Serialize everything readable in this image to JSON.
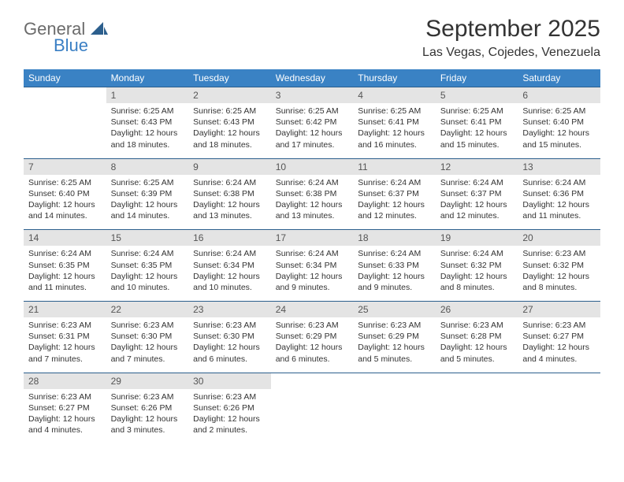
{
  "brand": {
    "word1": "General",
    "word2": "Blue",
    "color_general": "#6b6b6b",
    "color_blue": "#3a7fc4",
    "shape_color": "#2c5f8d"
  },
  "title": "September 2025",
  "location": "Las Vegas, Cojedes, Venezuela",
  "colors": {
    "header_bg": "#3a82c4",
    "header_text": "#ffffff",
    "daynum_bg": "#e4e4e4",
    "row_border": "#2c5f8d",
    "body_text": "#333333"
  },
  "dow": [
    "Sunday",
    "Monday",
    "Tuesday",
    "Wednesday",
    "Thursday",
    "Friday",
    "Saturday"
  ],
  "weeks": [
    [
      {
        "n": "",
        "sr": "",
        "ss": "",
        "dl": ""
      },
      {
        "n": "1",
        "sr": "Sunrise: 6:25 AM",
        "ss": "Sunset: 6:43 PM",
        "dl": "Daylight: 12 hours and 18 minutes."
      },
      {
        "n": "2",
        "sr": "Sunrise: 6:25 AM",
        "ss": "Sunset: 6:43 PM",
        "dl": "Daylight: 12 hours and 18 minutes."
      },
      {
        "n": "3",
        "sr": "Sunrise: 6:25 AM",
        "ss": "Sunset: 6:42 PM",
        "dl": "Daylight: 12 hours and 17 minutes."
      },
      {
        "n": "4",
        "sr": "Sunrise: 6:25 AM",
        "ss": "Sunset: 6:41 PM",
        "dl": "Daylight: 12 hours and 16 minutes."
      },
      {
        "n": "5",
        "sr": "Sunrise: 6:25 AM",
        "ss": "Sunset: 6:41 PM",
        "dl": "Daylight: 12 hours and 15 minutes."
      },
      {
        "n": "6",
        "sr": "Sunrise: 6:25 AM",
        "ss": "Sunset: 6:40 PM",
        "dl": "Daylight: 12 hours and 15 minutes."
      }
    ],
    [
      {
        "n": "7",
        "sr": "Sunrise: 6:25 AM",
        "ss": "Sunset: 6:40 PM",
        "dl": "Daylight: 12 hours and 14 minutes."
      },
      {
        "n": "8",
        "sr": "Sunrise: 6:25 AM",
        "ss": "Sunset: 6:39 PM",
        "dl": "Daylight: 12 hours and 14 minutes."
      },
      {
        "n": "9",
        "sr": "Sunrise: 6:24 AM",
        "ss": "Sunset: 6:38 PM",
        "dl": "Daylight: 12 hours and 13 minutes."
      },
      {
        "n": "10",
        "sr": "Sunrise: 6:24 AM",
        "ss": "Sunset: 6:38 PM",
        "dl": "Daylight: 12 hours and 13 minutes."
      },
      {
        "n": "11",
        "sr": "Sunrise: 6:24 AM",
        "ss": "Sunset: 6:37 PM",
        "dl": "Daylight: 12 hours and 12 minutes."
      },
      {
        "n": "12",
        "sr": "Sunrise: 6:24 AM",
        "ss": "Sunset: 6:37 PM",
        "dl": "Daylight: 12 hours and 12 minutes."
      },
      {
        "n": "13",
        "sr": "Sunrise: 6:24 AM",
        "ss": "Sunset: 6:36 PM",
        "dl": "Daylight: 12 hours and 11 minutes."
      }
    ],
    [
      {
        "n": "14",
        "sr": "Sunrise: 6:24 AM",
        "ss": "Sunset: 6:35 PM",
        "dl": "Daylight: 12 hours and 11 minutes."
      },
      {
        "n": "15",
        "sr": "Sunrise: 6:24 AM",
        "ss": "Sunset: 6:35 PM",
        "dl": "Daylight: 12 hours and 10 minutes."
      },
      {
        "n": "16",
        "sr": "Sunrise: 6:24 AM",
        "ss": "Sunset: 6:34 PM",
        "dl": "Daylight: 12 hours and 10 minutes."
      },
      {
        "n": "17",
        "sr": "Sunrise: 6:24 AM",
        "ss": "Sunset: 6:34 PM",
        "dl": "Daylight: 12 hours and 9 minutes."
      },
      {
        "n": "18",
        "sr": "Sunrise: 6:24 AM",
        "ss": "Sunset: 6:33 PM",
        "dl": "Daylight: 12 hours and 9 minutes."
      },
      {
        "n": "19",
        "sr": "Sunrise: 6:24 AM",
        "ss": "Sunset: 6:32 PM",
        "dl": "Daylight: 12 hours and 8 minutes."
      },
      {
        "n": "20",
        "sr": "Sunrise: 6:23 AM",
        "ss": "Sunset: 6:32 PM",
        "dl": "Daylight: 12 hours and 8 minutes."
      }
    ],
    [
      {
        "n": "21",
        "sr": "Sunrise: 6:23 AM",
        "ss": "Sunset: 6:31 PM",
        "dl": "Daylight: 12 hours and 7 minutes."
      },
      {
        "n": "22",
        "sr": "Sunrise: 6:23 AM",
        "ss": "Sunset: 6:30 PM",
        "dl": "Daylight: 12 hours and 7 minutes."
      },
      {
        "n": "23",
        "sr": "Sunrise: 6:23 AM",
        "ss": "Sunset: 6:30 PM",
        "dl": "Daylight: 12 hours and 6 minutes."
      },
      {
        "n": "24",
        "sr": "Sunrise: 6:23 AM",
        "ss": "Sunset: 6:29 PM",
        "dl": "Daylight: 12 hours and 6 minutes."
      },
      {
        "n": "25",
        "sr": "Sunrise: 6:23 AM",
        "ss": "Sunset: 6:29 PM",
        "dl": "Daylight: 12 hours and 5 minutes."
      },
      {
        "n": "26",
        "sr": "Sunrise: 6:23 AM",
        "ss": "Sunset: 6:28 PM",
        "dl": "Daylight: 12 hours and 5 minutes."
      },
      {
        "n": "27",
        "sr": "Sunrise: 6:23 AM",
        "ss": "Sunset: 6:27 PM",
        "dl": "Daylight: 12 hours and 4 minutes."
      }
    ],
    [
      {
        "n": "28",
        "sr": "Sunrise: 6:23 AM",
        "ss": "Sunset: 6:27 PM",
        "dl": "Daylight: 12 hours and 4 minutes."
      },
      {
        "n": "29",
        "sr": "Sunrise: 6:23 AM",
        "ss": "Sunset: 6:26 PM",
        "dl": "Daylight: 12 hours and 3 minutes."
      },
      {
        "n": "30",
        "sr": "Sunrise: 6:23 AM",
        "ss": "Sunset: 6:26 PM",
        "dl": "Daylight: 12 hours and 2 minutes."
      },
      {
        "n": "",
        "sr": "",
        "ss": "",
        "dl": ""
      },
      {
        "n": "",
        "sr": "",
        "ss": "",
        "dl": ""
      },
      {
        "n": "",
        "sr": "",
        "ss": "",
        "dl": ""
      },
      {
        "n": "",
        "sr": "",
        "ss": "",
        "dl": ""
      }
    ]
  ]
}
